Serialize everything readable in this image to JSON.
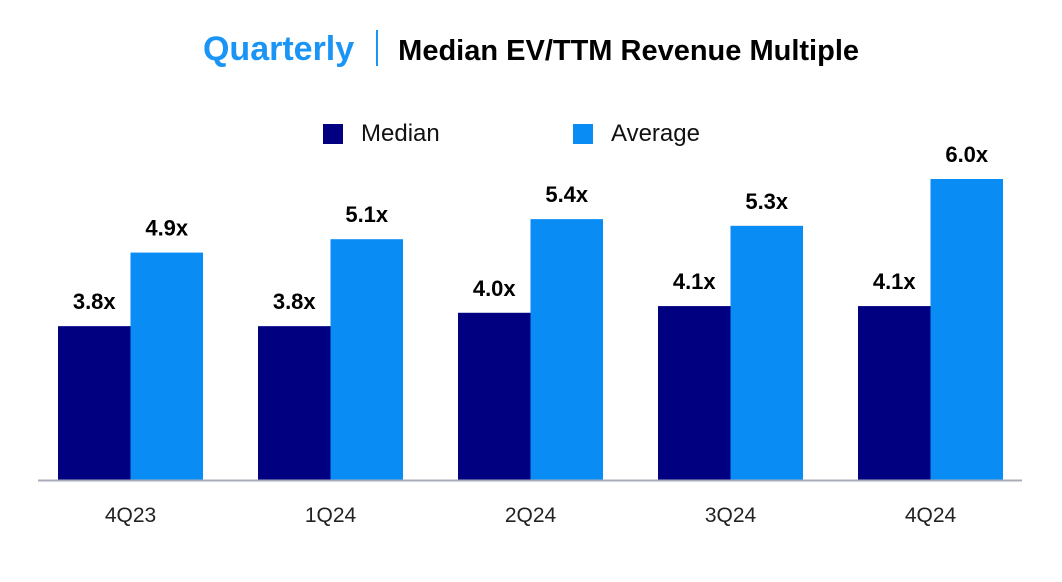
{
  "chart_data": {
    "type": "bar",
    "title_prefix": "Quarterly",
    "title": "Median EV/TTM Revenue Multiple",
    "xlabel": "",
    "ylabel": "",
    "categories": [
      "4Q23",
      "1Q24",
      "2Q24",
      "3Q24",
      "4Q24"
    ],
    "series": [
      {
        "name": "Median",
        "color": "#000080",
        "values": [
          3.8,
          3.8,
          4.0,
          4.1,
          4.1
        ],
        "labels": [
          "3.8x",
          "3.8x",
          "4.0x",
          "4.1x",
          "4.1x"
        ]
      },
      {
        "name": "Average",
        "color": "#0a8cf5",
        "values": [
          4.9,
          5.1,
          5.4,
          5.3,
          6.0
        ],
        "labels": [
          "4.9x",
          "5.1x",
          "5.4x",
          "5.3x",
          "6.0x"
        ]
      }
    ],
    "ylim": [
      1.5,
      6.0
    ],
    "grid": false,
    "legend_position": "top-center"
  }
}
